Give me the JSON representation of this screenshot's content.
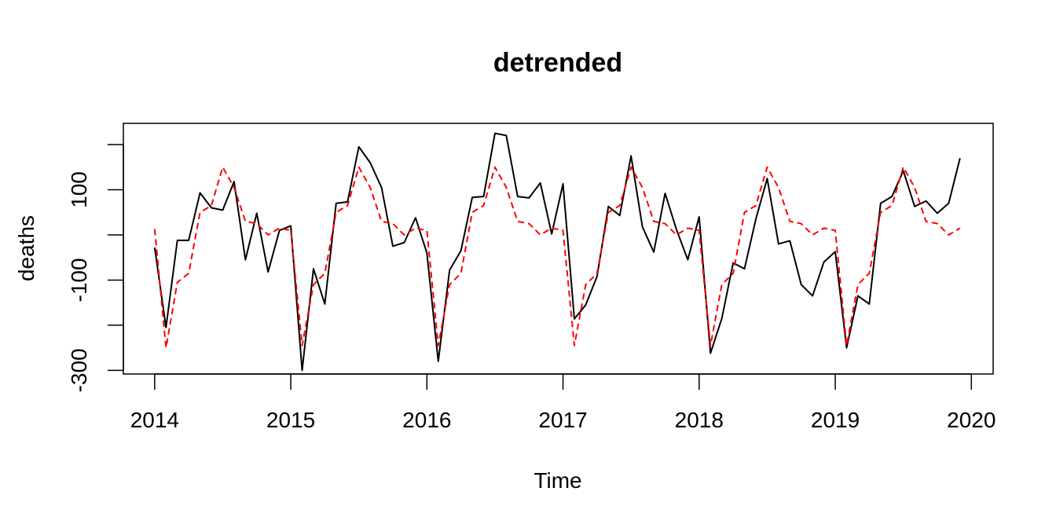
{
  "chart_data": {
    "type": "line",
    "title": "detrended",
    "xlabel": "Time",
    "ylabel": "deaths",
    "xlim": [
      2013.77,
      2020.16
    ],
    "ylim": [
      -308,
      247
    ],
    "x_ticks": [
      2014,
      2015,
      2016,
      2017,
      2018,
      2019,
      2020
    ],
    "y_ticks": [
      -300,
      -200,
      -100,
      0,
      100,
      200
    ],
    "y_tick_labels": [
      "-300",
      "",
      "-100",
      "",
      "100",
      ""
    ],
    "grid": false,
    "legend": "none",
    "series": [
      {
        "color": "#000000",
        "dash": "solid",
        "start": 2014,
        "step": 0.0833333,
        "values": [
          -28,
          -205,
          -12,
          -12,
          93,
          60,
          55,
          118,
          -55,
          48,
          -82,
          10,
          20,
          -300,
          -75,
          -153,
          70,
          73,
          195,
          160,
          105,
          -25,
          -17,
          38,
          -40,
          -280,
          -78,
          -35,
          83,
          85,
          225,
          220,
          85,
          82,
          115,
          2,
          113,
          -186,
          -155,
          -92,
          63,
          43,
          175,
          18,
          -38,
          92,
          12,
          -55,
          40,
          -262,
          -185,
          -62,
          -75,
          35,
          125,
          -20,
          -13,
          -110,
          -135,
          -60,
          -37,
          -250,
          -135,
          -153,
          70,
          85,
          142,
          63,
          75,
          48,
          70,
          170
        ]
      },
      {
        "color": "#ff0000",
        "dash": "dashed",
        "start": 2014,
        "step": 0.0833333,
        "values": [
          13,
          -250,
          -105,
          -85,
          50,
          65,
          150,
          105,
          30,
          25,
          0,
          15,
          10,
          -245,
          -110,
          -85,
          50,
          65,
          150,
          105,
          30,
          25,
          0,
          15,
          10,
          -245,
          -110,
          -85,
          50,
          65,
          150,
          105,
          30,
          25,
          0,
          15,
          10,
          -245,
          -110,
          -85,
          50,
          65,
          150,
          105,
          30,
          25,
          0,
          15,
          10,
          -245,
          -110,
          -85,
          50,
          65,
          150,
          105,
          30,
          25,
          0,
          15,
          10,
          -245,
          -110,
          -85,
          50,
          65,
          150,
          105,
          30,
          25,
          0,
          15
        ]
      }
    ]
  }
}
